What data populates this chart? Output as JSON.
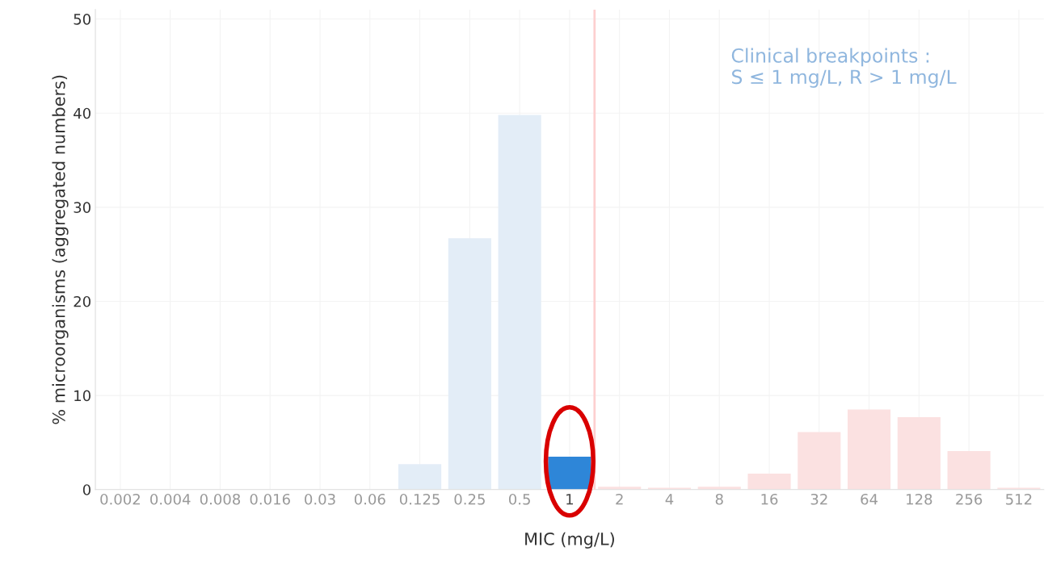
{
  "chart_data": {
    "type": "bar",
    "xlabel": "MIC (mg/L)",
    "ylabel": "% microorganisms (aggregated numbers)",
    "categories": [
      "0.002",
      "0.004",
      "0.008",
      "0.016",
      "0.03",
      "0.06",
      "0.125",
      "0.25",
      "0.5",
      "1",
      "2",
      "4",
      "8",
      "16",
      "32",
      "64",
      "128",
      "256",
      "512"
    ],
    "values": [
      0,
      0,
      0,
      0,
      0,
      0,
      2.7,
      26.7,
      39.8,
      3.5,
      0.3,
      0.2,
      0.3,
      1.7,
      6.1,
      8.5,
      7.7,
      4.1,
      0.2
    ],
    "colors": [
      "#e3edf7",
      "#e3edf7",
      "#e3edf7",
      "#e3edf7",
      "#e3edf7",
      "#e3edf7",
      "#e3edf7",
      "#e3edf7",
      "#e3edf7",
      "#2e86d8",
      "#fbe1e1",
      "#fbe1e1",
      "#fbe1e1",
      "#fbe1e1",
      "#fbe1e1",
      "#fbe1e1",
      "#fbe1e1",
      "#fbe1e1",
      "#fbe1e1"
    ],
    "ylim": [
      0,
      51
    ],
    "yticks": [
      0,
      10,
      20,
      30,
      40,
      50
    ],
    "grid": true,
    "ref_lines": [
      {
        "axis": "x",
        "value": "1",
        "color": "#fdd0d0"
      }
    ],
    "annotations": [
      "Clinical breakpoints :\nS ≤ 1 mg/L, R > 1 mg/L"
    ]
  }
}
